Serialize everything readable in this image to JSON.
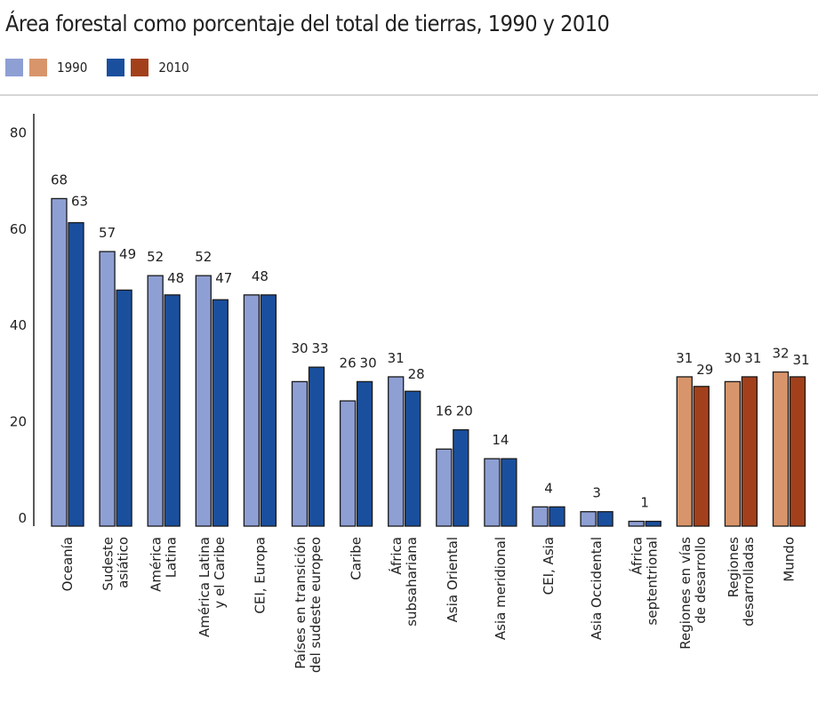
{
  "chart_data": {
    "type": "bar",
    "title": "Área forestal como porcentaje del total de tierras, 1990 y 2010",
    "xlabel": "",
    "ylabel": "",
    "ylim": [
      0,
      80
    ],
    "yticks": [
      0,
      20,
      40,
      60,
      80
    ],
    "grid": false,
    "legend_placement": "top-left",
    "legend": [
      {
        "name": "1990",
        "colors": [
          "#8e9fd4",
          "#d8956b"
        ]
      },
      {
        "name": "2010",
        "colors": [
          "#1a4f9e",
          "#a3401c"
        ]
      }
    ],
    "categories": [
      [
        "Oceanía"
      ],
      [
        "Sudeste",
        "asiático"
      ],
      [
        "América",
        "Latina"
      ],
      [
        "América Latina",
        "y el Caribe"
      ],
      [
        "CEI, Europa"
      ],
      [
        "Países en transición",
        "del sudeste europeo"
      ],
      [
        "Caribe"
      ],
      [
        "África",
        "subsahariana"
      ],
      [
        "Asia Oriental"
      ],
      [
        "Asia meridional"
      ],
      [
        "CEI, Asia"
      ],
      [
        "Asia Occidental"
      ],
      [
        "África",
        "septentrional"
      ],
      [
        "Regiones en vías",
        "de desarrollo"
      ],
      [
        "Regiones",
        "desarrolladas"
      ],
      [
        "Mundo"
      ]
    ],
    "group_palette": [
      "blue",
      "blue",
      "blue",
      "blue",
      "blue",
      "blue",
      "blue",
      "blue",
      "blue",
      "blue",
      "blue",
      "blue",
      "blue",
      "orange",
      "orange",
      "orange"
    ],
    "series": [
      {
        "name": "1990",
        "values": [
          68,
          57,
          52,
          52,
          48,
          30,
          26,
          31,
          16,
          14,
          4,
          3,
          1,
          31,
          30,
          32
        ]
      },
      {
        "name": "2010",
        "values": [
          63,
          49,
          48,
          47,
          48,
          33,
          30,
          28,
          20,
          14,
          4,
          3,
          1,
          29,
          31,
          31
        ]
      }
    ]
  }
}
